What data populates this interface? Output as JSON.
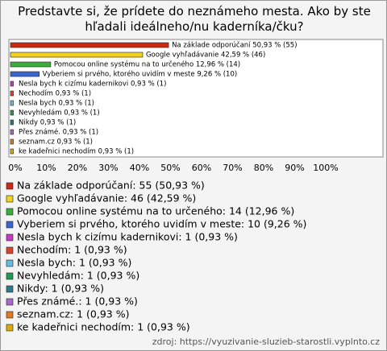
{
  "chart_data": {
    "type": "bar",
    "orientation": "horizontal",
    "title": "Predstavte si, že prídete do neznámeho mesta. Ako by ste hľadali ideálneho/nu kaderníka/čku?",
    "categories": [
      "Na základe odporúčaní",
      "Google vyhľadávanie",
      "Pomocou online systému na to určeného",
      "Vyberiem si prvého, ktorého uvidím v meste",
      "Nesla bych k cizímu kadernikovi",
      "Nechodím",
      "Nesla bych",
      "Nevyhledám",
      "Nikdy",
      "Přes známé.",
      "seznam.cz",
      "ke kadeřnici nechodím"
    ],
    "values": [
      50.93,
      42.59,
      12.96,
      9.26,
      0.93,
      0.93,
      0.93,
      0.93,
      0.93,
      0.93,
      0.93,
      0.93
    ],
    "value_labels": [
      "Na základe odporúčaní 50,93 % (55)",
      "Google vyhľadávanie 42,59 % (46)",
      "Pomocou online systému na to určeného 12,96 % (14)",
      "Vyberiem si prvého, ktorého uvidím v meste 9,26 % (10)",
      "Nesla bych k cizímu kadernikovi 0,93 % (1)",
      "Nechodím 0,93 % (1)",
      "Nesla bych 0,93 % (1)",
      "Nevyhledám 0,93 % (1)",
      "Nikdy 0,93 % (1)",
      "Přes známé. 0,93 % (1)",
      "seznam.cz 0,93 % (1)",
      "ke kadeřnici nechodím 0,93 % (1)"
    ],
    "legend_labels": [
      "Na základe odporúčaní: 55 (50,93 %)",
      "Google vyhľadávanie: 46 (42,59 %)",
      "Pomocou online systému na to určeného: 14 (12,96 %)",
      "Vyberiem si prvého, ktorého uvidím v meste: 10 (9,26 %)",
      "Nesla bych k cizímu kadernikovi: 1 (0,93 %)",
      "Nechodím: 1 (0,93 %)",
      "Nesla bych: 1 (0,93 %)",
      "Nevyhledám: 1 (0,93 %)",
      "Nikdy: 1 (0,93 %)",
      "Přes známé.: 1 (0,93 %)",
      "seznam.cz: 1 (0,93 %)",
      "ke kadeřnici nechodím: 1 (0,93 %)"
    ],
    "colors": [
      "#cc2a14",
      "#f2d21c",
      "#3aad3a",
      "#3a66d0",
      "#c43ac4",
      "#d8442a",
      "#66bde0",
      "#229a55",
      "#2f7a8a",
      "#a868cc",
      "#e07a22",
      "#ddaa0a"
    ],
    "xlim": [
      0,
      100
    ],
    "xticks": [
      {
        "value": 0,
        "label": "0%"
      },
      {
        "value": 10,
        "label": "10%"
      },
      {
        "value": 20,
        "label": "20%"
      },
      {
        "value": 30,
        "label": "30%"
      },
      {
        "value": 40,
        "label": "40%"
      },
      {
        "value": 50,
        "label": "50%"
      },
      {
        "value": 60,
        "label": "60%"
      },
      {
        "value": 70,
        "label": "70%"
      },
      {
        "value": 80,
        "label": "80%"
      },
      {
        "value": 90,
        "label": "90%"
      },
      {
        "value": 100,
        "label": "100%"
      }
    ],
    "source": "zdroj: https://vyuzivanie-sluzieb-starostli.vyplnto.cz"
  }
}
